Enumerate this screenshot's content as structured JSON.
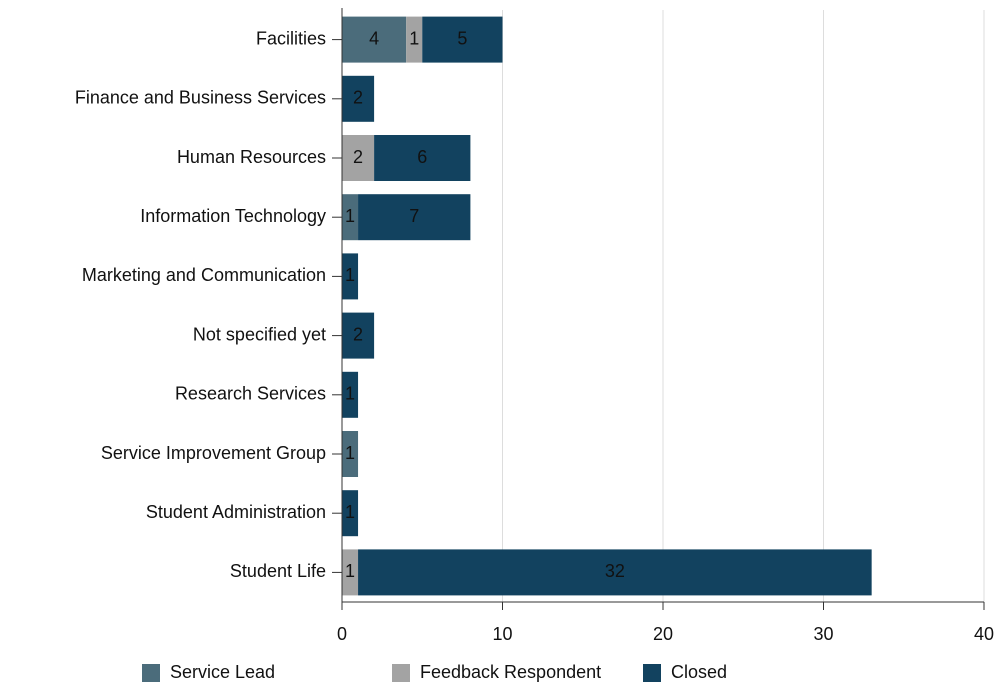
{
  "chart_data": {
    "type": "stacked-bar-horizontal",
    "categories": [
      "Facilities",
      "Finance and Business Services",
      "Human Resources",
      "Information Technology",
      "Marketing and Communication",
      "Not specified yet",
      "Research Services",
      "Service Improvement Group",
      "Student Administration",
      "Student Life"
    ],
    "series": [
      {
        "name": "Service Lead",
        "color": "#4b6c7b",
        "values": [
          4,
          null,
          null,
          1,
          null,
          null,
          null,
          1,
          null,
          null
        ]
      },
      {
        "name": "Feedback Respondent",
        "color": "#a3a3a3",
        "values": [
          1,
          null,
          2,
          null,
          null,
          null,
          null,
          null,
          null,
          1
        ]
      },
      {
        "name": "Closed",
        "color": "#12425f",
        "values": [
          5,
          2,
          6,
          7,
          1,
          2,
          1,
          null,
          1,
          32
        ]
      }
    ],
    "xlim": [
      0,
      40
    ],
    "xticks": [
      0,
      10,
      20,
      30,
      40
    ],
    "grid": true,
    "legend": "bottom"
  }
}
